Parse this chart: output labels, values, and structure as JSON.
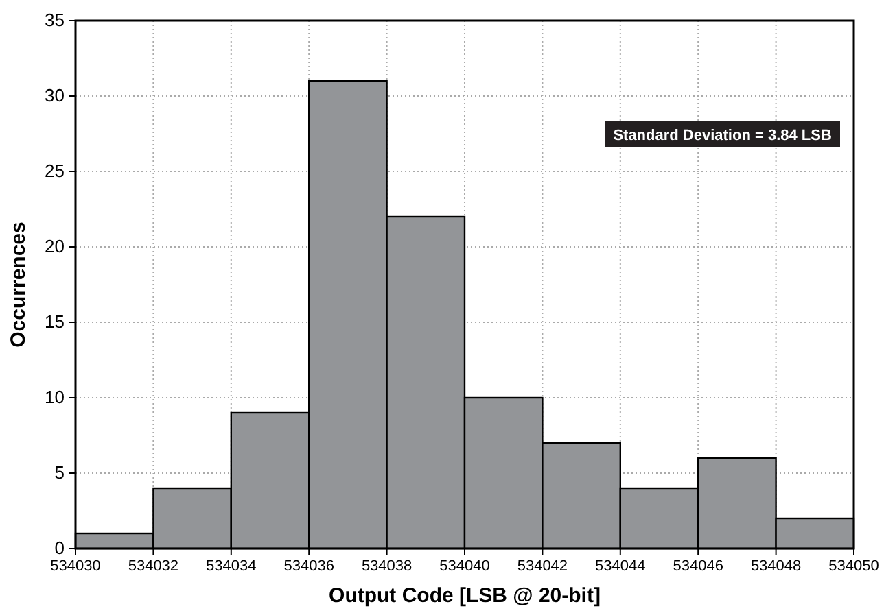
{
  "chart_data": {
    "type": "histogram",
    "xlabel": "Output Code [LSB @ 20-bit]",
    "ylabel": "Occurrences",
    "bins": [
      534030,
      534032,
      534034,
      534036,
      534038,
      534040,
      534042,
      534044,
      534046,
      534048,
      534050
    ],
    "values": [
      1,
      4,
      9,
      31,
      22,
      10,
      7,
      4,
      6,
      2
    ],
    "color": "#939598",
    "xlim": [
      534030,
      534050
    ],
    "xticks": [
      534030,
      534032,
      534034,
      534036,
      534038,
      534040,
      534042,
      534044,
      534046,
      534048,
      534050
    ],
    "ylim": [
      0,
      35
    ],
    "yticks": [
      0,
      5,
      10,
      15,
      20,
      25,
      30,
      35
    ],
    "grid": true,
    "annotations": [
      "Standard Deviation = 3.84 LSB"
    ]
  }
}
